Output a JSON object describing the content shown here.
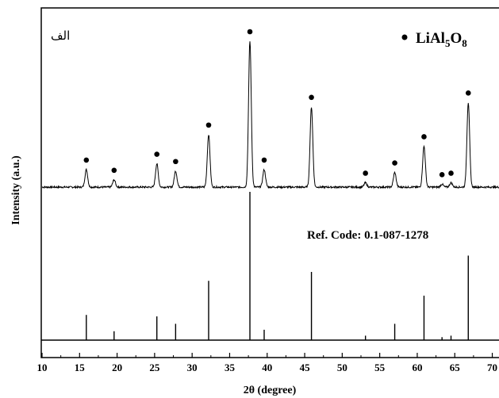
{
  "chart_data": {
    "type": "line",
    "panel_label": "الف",
    "xlabel": "2θ (degree)",
    "ylabel": "Intensity (a.u.)",
    "xlim": [
      10,
      71
    ],
    "xticks": [
      10,
      15,
      20,
      25,
      30,
      35,
      40,
      45,
      50,
      55,
      60,
      65,
      70
    ],
    "xtick_labels": [
      "10",
      "15",
      "20",
      "25",
      "30",
      "35",
      "40",
      "45",
      "50",
      "55",
      "60",
      "65",
      "70"
    ],
    "legend": {
      "marker": "filled-circle",
      "label_main": "LiAl",
      "sub1": "5",
      "label_mid": "O",
      "sub2": "8",
      "placement": "top-right"
    },
    "reference_label": "Ref. Code: 0.1-087-1278",
    "series": [
      {
        "role": "measured pattern",
        "baseline": 0.0,
        "peaks": [
          {
            "x": 15.9,
            "height": 0.12
          },
          {
            "x": 19.6,
            "height": 0.05
          },
          {
            "x": 25.3,
            "height": 0.16
          },
          {
            "x": 27.8,
            "height": 0.11
          },
          {
            "x": 32.2,
            "height": 0.36
          },
          {
            "x": 37.7,
            "height": 1.0
          },
          {
            "x": 39.6,
            "height": 0.12
          },
          {
            "x": 45.9,
            "height": 0.55
          },
          {
            "x": 53.1,
            "height": 0.03
          },
          {
            "x": 57.0,
            "height": 0.1
          },
          {
            "x": 60.9,
            "height": 0.28
          },
          {
            "x": 63.3,
            "height": 0.02
          },
          {
            "x": 64.5,
            "height": 0.03
          },
          {
            "x": 66.8,
            "height": 0.58
          }
        ],
        "marked_peaks_x": [
          15.9,
          19.6,
          25.3,
          27.8,
          32.2,
          37.7,
          39.6,
          45.9,
          53.1,
          57.0,
          60.9,
          63.3,
          64.5,
          66.8
        ]
      },
      {
        "role": "reference lines",
        "lines": [
          {
            "x": 15.9,
            "height": 0.17
          },
          {
            "x": 19.6,
            "height": 0.06
          },
          {
            "x": 25.3,
            "height": 0.16
          },
          {
            "x": 27.8,
            "height": 0.11
          },
          {
            "x": 32.2,
            "height": 0.4
          },
          {
            "x": 37.7,
            "height": 1.0
          },
          {
            "x": 39.6,
            "height": 0.07
          },
          {
            "x": 45.9,
            "height": 0.46
          },
          {
            "x": 53.1,
            "height": 0.03
          },
          {
            "x": 57.0,
            "height": 0.11
          },
          {
            "x": 60.9,
            "height": 0.3
          },
          {
            "x": 63.3,
            "height": 0.02
          },
          {
            "x": 64.5,
            "height": 0.03
          },
          {
            "x": 66.8,
            "height": 0.57
          }
        ]
      }
    ],
    "colors": {
      "line": "#000000",
      "background": "#ffffff"
    }
  }
}
